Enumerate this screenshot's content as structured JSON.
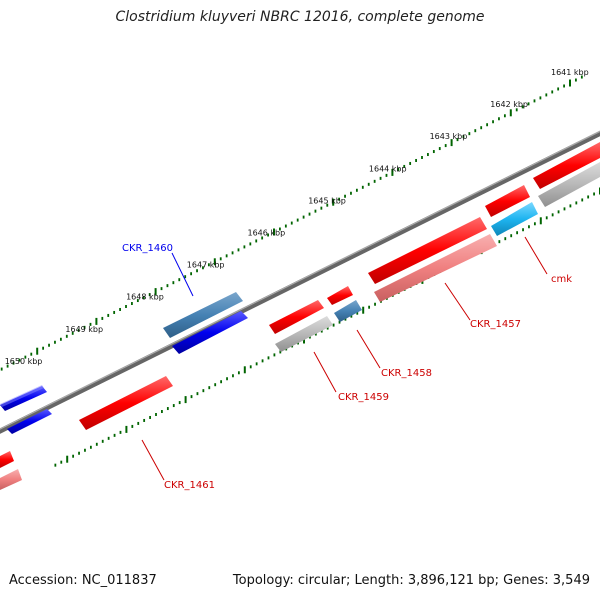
{
  "title": "Clostridium kluyveri NBRC 12016, complete genome",
  "footer": {
    "accession": "Accession: NC_011837",
    "summary": "Topology: circular; Length: 3,896,121 bp; Genes: 3,549"
  },
  "ticks": [
    {
      "label": "1641 kbp",
      "kbp": 1641
    },
    {
      "label": "1642 kbp",
      "kbp": 1642
    },
    {
      "label": "1643 kbp",
      "kbp": 1643
    },
    {
      "label": "1644 kbp",
      "kbp": 1644
    },
    {
      "label": "1645 kbp",
      "kbp": 1645
    },
    {
      "label": "1646 kbp",
      "kbp": 1646
    },
    {
      "label": "1647 kbp",
      "kbp": 1647
    },
    {
      "label": "1648 kbp",
      "kbp": 1648
    },
    {
      "label": "1649 kbp",
      "kbp": 1649
    },
    {
      "label": "1650 kbp",
      "kbp": 1650
    }
  ],
  "gene_labels": [
    {
      "id": "CKR_1460",
      "color": "#0000ee"
    },
    {
      "id": "cmk",
      "color": "#cc0000"
    },
    {
      "id": "CKR_1457",
      "color": "#cc0000"
    },
    {
      "id": "CKR_1458",
      "color": "#cc0000"
    },
    {
      "id": "CKR_1459",
      "color": "#cc0000"
    },
    {
      "id": "CKR_1461",
      "color": "#cc0000"
    }
  ],
  "colors": {
    "forward_gene": "#ff0000",
    "reverse_gene": "#0000ee",
    "reverse_cds": "#4682b4",
    "forward_cds": "#f08080",
    "gray_feature": "#b8b8b8",
    "highlight_cds": "#1eb4f0",
    "backbone": "#777777",
    "tick_color": "#006400"
  }
}
